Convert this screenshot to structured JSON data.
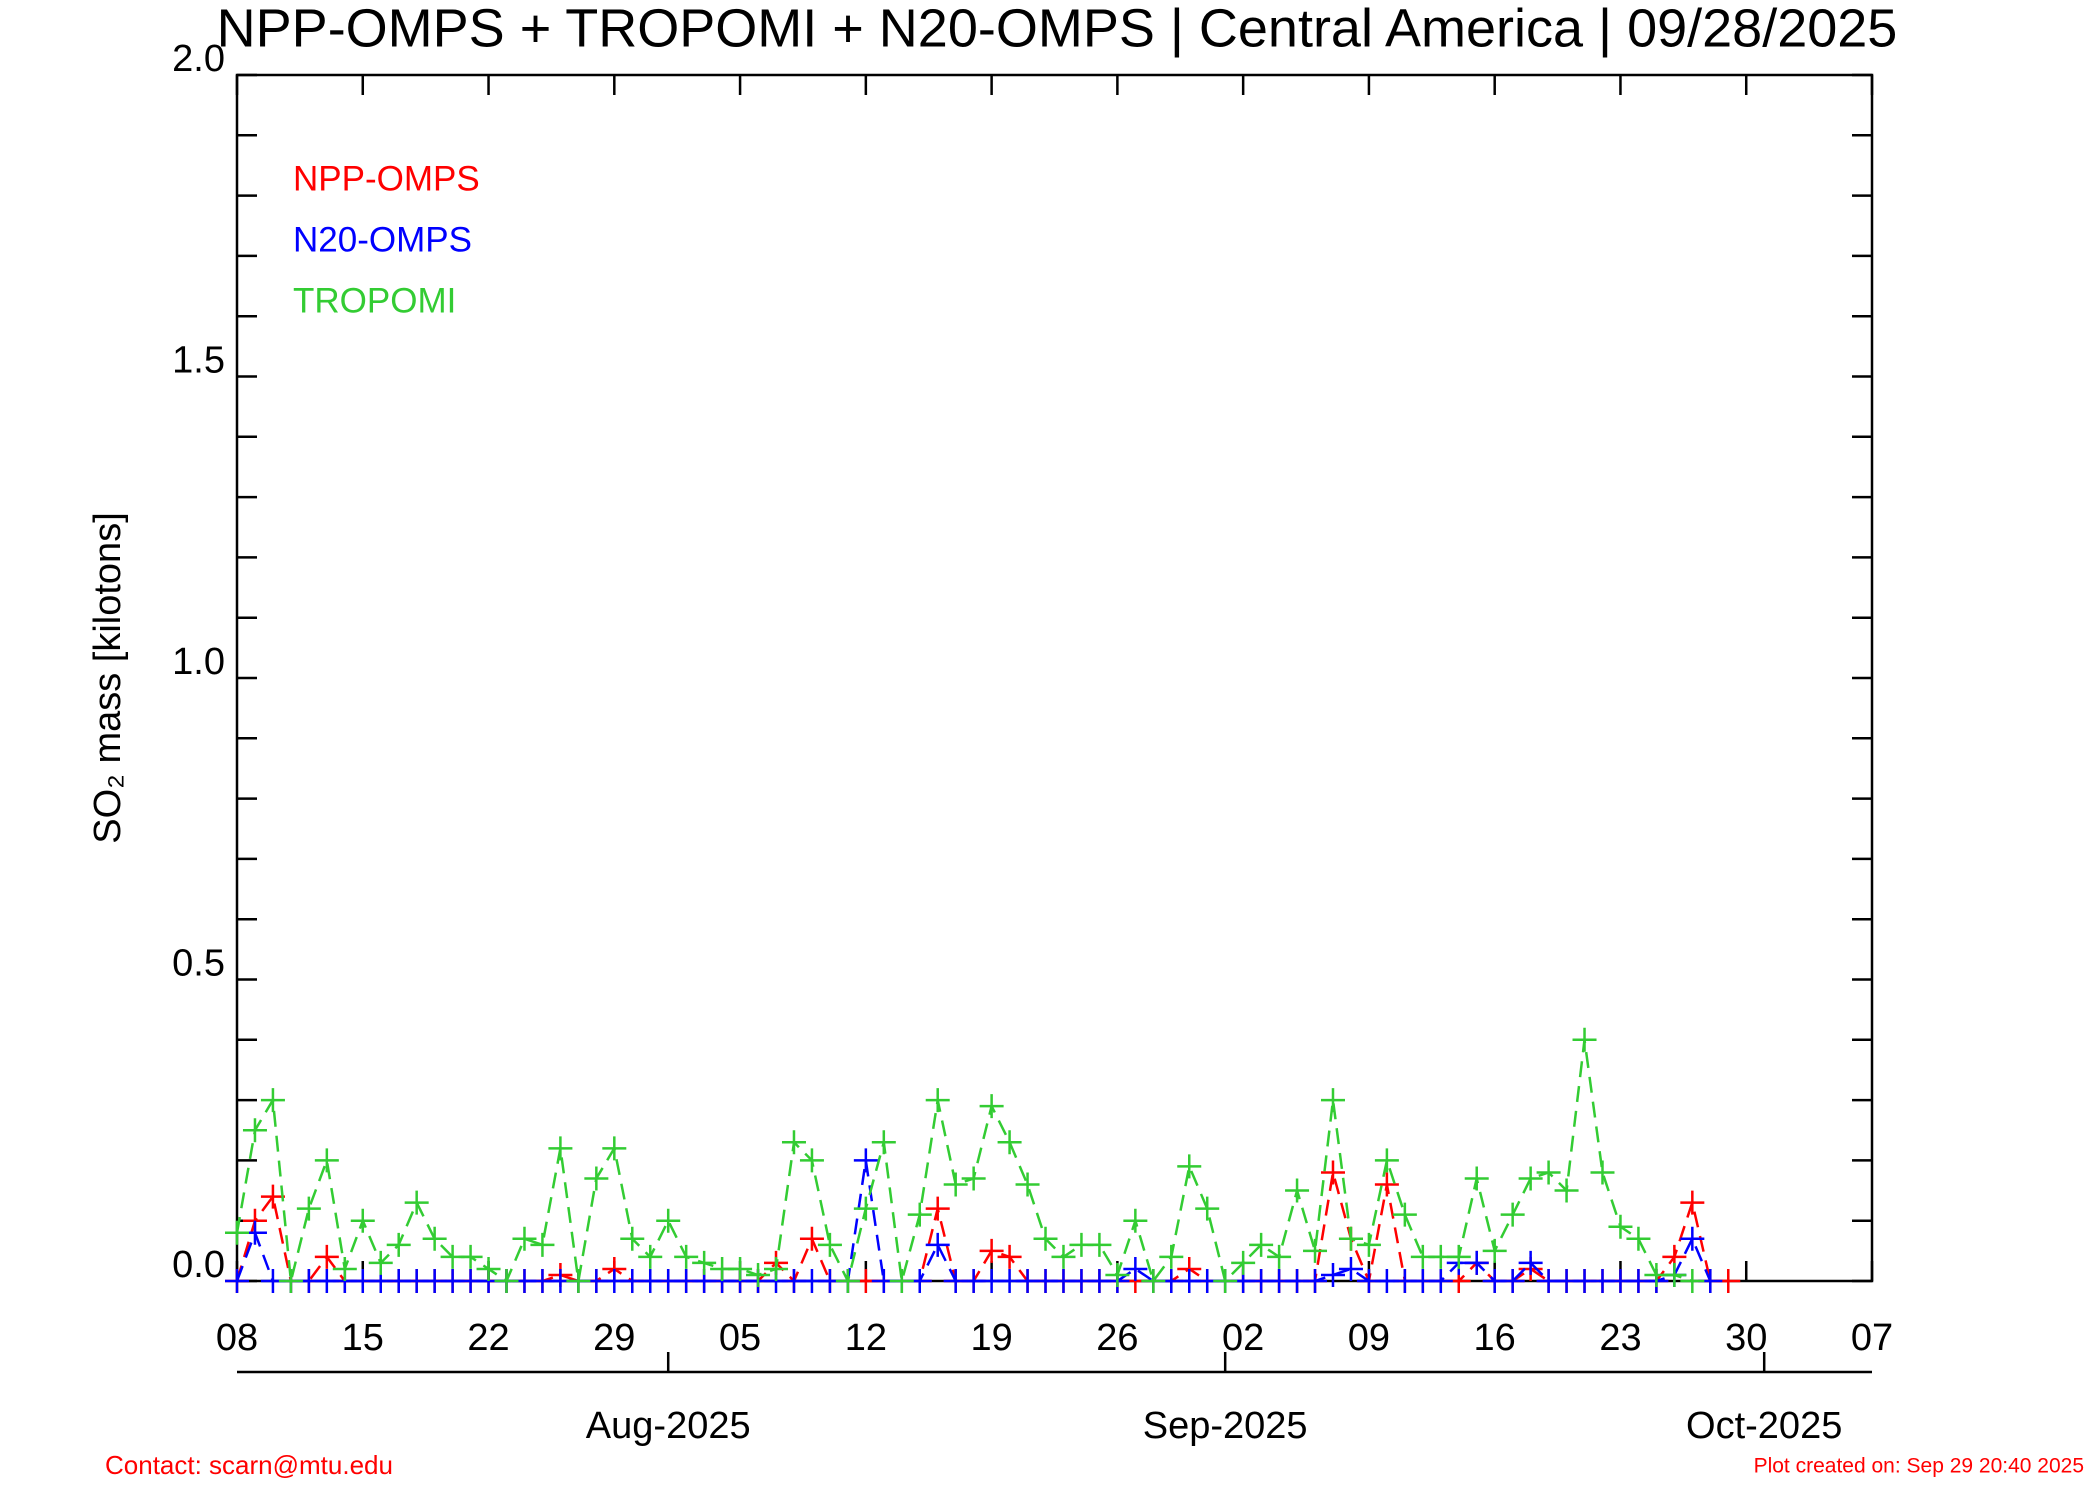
{
  "chart_data": {
    "type": "line",
    "title": "NPP-OMPS + TROPOMI + N20-OMPS | Central America | 09/28/2025",
    "y_label": "SO₂ mass [kilotons]",
    "contact": "Contact: scarn@mtu.edu",
    "created": "Plot created on: Sep 29 20:40 2025",
    "x": [
      "2025-07-08",
      "2025-07-09",
      "2025-07-10",
      "2025-07-11",
      "2025-07-12",
      "2025-07-13",
      "2025-07-14",
      "2025-07-15",
      "2025-07-16",
      "2025-07-17",
      "2025-07-18",
      "2025-07-19",
      "2025-07-20",
      "2025-07-21",
      "2025-07-22",
      "2025-07-23",
      "2025-07-24",
      "2025-07-25",
      "2025-07-26",
      "2025-07-27",
      "2025-07-28",
      "2025-07-29",
      "2025-07-30",
      "2025-07-31",
      "2025-08-01",
      "2025-08-02",
      "2025-08-03",
      "2025-08-04",
      "2025-08-05",
      "2025-08-06",
      "2025-08-07",
      "2025-08-08",
      "2025-08-09",
      "2025-08-10",
      "2025-08-11",
      "2025-08-12",
      "2025-08-13",
      "2025-08-14",
      "2025-08-15",
      "2025-08-16",
      "2025-08-17",
      "2025-08-18",
      "2025-08-19",
      "2025-08-20",
      "2025-08-21",
      "2025-08-22",
      "2025-08-23",
      "2025-08-24",
      "2025-08-25",
      "2025-08-26",
      "2025-08-27",
      "2025-08-28",
      "2025-08-29",
      "2025-08-30",
      "2025-08-31",
      "2025-09-01",
      "2025-09-02",
      "2025-09-03",
      "2025-09-04",
      "2025-09-05",
      "2025-09-06",
      "2025-09-07",
      "2025-09-08",
      "2025-09-09",
      "2025-09-10",
      "2025-09-11",
      "2025-09-12",
      "2025-09-13",
      "2025-09-14",
      "2025-09-15",
      "2025-09-16",
      "2025-09-17",
      "2025-09-18",
      "2025-09-19",
      "2025-09-20",
      "2025-09-21",
      "2025-09-22",
      "2025-09-23",
      "2025-09-24",
      "2025-09-25",
      "2025-09-26",
      "2025-09-27",
      "2025-09-28",
      "2025-09-29"
    ],
    "series": [
      {
        "name": "NPP-OMPS",
        "color": "#ff0000",
        "values": [
          0,
          0.1,
          0.14,
          0,
          0,
          0.04,
          0,
          0,
          0,
          0,
          0,
          0,
          0,
          0,
          0,
          0,
          0,
          0,
          0.01,
          0,
          0,
          0.02,
          0,
          0,
          0,
          0,
          0,
          0,
          0,
          0,
          0.03,
          0,
          0.07,
          0,
          0,
          0,
          0,
          0,
          0,
          0.12,
          0,
          0,
          0.05,
          0.04,
          0,
          0,
          0,
          0,
          0,
          0,
          0,
          0,
          0,
          0.02,
          0,
          0,
          0,
          0,
          0,
          0,
          0,
          0.18,
          0.07,
          0,
          0.16,
          0,
          0,
          0,
          0,
          0.03,
          0,
          0,
          0.02,
          0,
          0,
          0,
          0,
          0,
          0,
          0,
          0.04,
          0.13,
          0,
          0
        ]
      },
      {
        "name": "N20-OMPS",
        "color": "#0000ff",
        "values": [
          0,
          0.08,
          0,
          0,
          0,
          0,
          0,
          0,
          0,
          0,
          0,
          0,
          0,
          0,
          0,
          0,
          0,
          0,
          0,
          0,
          0,
          0,
          0,
          0,
          0,
          0,
          0,
          0,
          0,
          0,
          0,
          0,
          0,
          0,
          0,
          0.2,
          0,
          0,
          0,
          0.06,
          0,
          0,
          0,
          0,
          0,
          0,
          0,
          0,
          0,
          0,
          0.02,
          0,
          0,
          0,
          0,
          0,
          0,
          0,
          0,
          0,
          0,
          0.01,
          0.02,
          0,
          0,
          0,
          0,
          0,
          0.03,
          0.03,
          0,
          0,
          0.03,
          0,
          0,
          0,
          0,
          0,
          0,
          0,
          0.01,
          0.07,
          0,
          null
        ]
      },
      {
        "name": "TROPOMI",
        "color": "#33cc33",
        "values": [
          0.08,
          0.25,
          0.3,
          0,
          0.12,
          0.2,
          0.02,
          0.1,
          0.03,
          0.06,
          0.13,
          0.07,
          0.04,
          0.04,
          0.02,
          0,
          0.07,
          0.06,
          0.22,
          0,
          0.17,
          0.22,
          0.07,
          0.04,
          0.1,
          0.04,
          0.03,
          0.02,
          0.02,
          0.01,
          0.02,
          0.23,
          0.2,
          0.06,
          0,
          0.12,
          0.23,
          0,
          0.11,
          0.3,
          0.16,
          0.17,
          0.29,
          0.23,
          0.16,
          0.07,
          0.04,
          0.06,
          0.06,
          0.01,
          0.1,
          0,
          0.04,
          0.19,
          0.12,
          0,
          0.03,
          0.06,
          0.04,
          0.15,
          0.05,
          0.3,
          0.07,
          0.06,
          0.2,
          0.11,
          0.04,
          0.04,
          0.04,
          0.17,
          0.05,
          0.11,
          0.17,
          0.18,
          0.15,
          0.4,
          0.18,
          0.09,
          0.07,
          0.01,
          0.01,
          0,
          null,
          null
        ]
      }
    ],
    "xlim": [
      "2025-07-08",
      "2025-10-07"
    ],
    "xticks": [
      {
        "value": "2025-07-08",
        "label": "08"
      },
      {
        "value": "2025-07-15",
        "label": "15"
      },
      {
        "value": "2025-07-22",
        "label": "22"
      },
      {
        "value": "2025-07-29",
        "label": "29"
      },
      {
        "value": "2025-08-05",
        "label": "05"
      },
      {
        "value": "2025-08-12",
        "label": "12"
      },
      {
        "value": "2025-08-19",
        "label": "19"
      },
      {
        "value": "2025-08-26",
        "label": "26"
      },
      {
        "value": "2025-09-02",
        "label": "02"
      },
      {
        "value": "2025-09-09",
        "label": "09"
      },
      {
        "value": "2025-09-16",
        "label": "16"
      },
      {
        "value": "2025-09-23",
        "label": "23"
      },
      {
        "value": "2025-09-30",
        "label": "30"
      },
      {
        "value": "2025-10-07",
        "label": "07"
      }
    ],
    "month_ticks": [
      {
        "value": "2025-08-01",
        "label": "Aug-2025"
      },
      {
        "value": "2025-09-01",
        "label": "Sep-2025"
      },
      {
        "value": "2025-10-01",
        "label": "Oct-2025"
      }
    ],
    "ylim": [
      0,
      2
    ],
    "yticks": [
      {
        "value": 0,
        "label": "0.0"
      },
      {
        "value": 0.5,
        "label": "0.5"
      },
      {
        "value": 1,
        "label": "1.0"
      },
      {
        "value": 1.5,
        "label": "1.5"
      },
      {
        "value": 2,
        "label": "2.0"
      }
    ],
    "yminor_ticks": [
      0.1,
      0.2,
      0.3,
      0.4,
      0.6,
      0.7,
      0.8,
      0.9,
      1.1,
      1.2,
      1.3,
      1.4,
      1.6,
      1.7,
      1.8,
      1.9
    ],
    "line_style": "dashed",
    "marker": "plus"
  }
}
